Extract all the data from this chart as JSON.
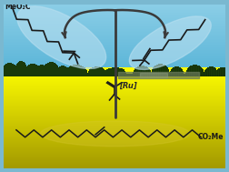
{
  "sky_color_top": "#5ab5d8",
  "sky_color_bottom": "#8fd0e8",
  "field_top_color": "#c8b800",
  "field_mid_color": "#d4c800",
  "field_bottom_color": "#e8e000",
  "tree_color": "#1a3a0a",
  "tree_dark": "#0f2206",
  "rod_color": "#3a3a3a",
  "molecule_color": "#1a1a1a",
  "ellipse_left_color": "#b8dff0",
  "ellipse_right_color": "#b8dff0",
  "ellipse_alpha": 0.6,
  "oleate_ellipse_color": "#d8c830",
  "oleate_ellipse_alpha": 0.3,
  "label_meo2c": "MeO₂C",
  "label_co2me": "CO₂Me",
  "label_ru": "[Ru]",
  "border_color": "#7ab8d0"
}
